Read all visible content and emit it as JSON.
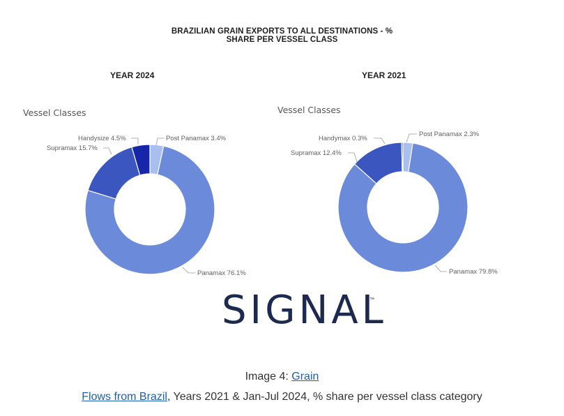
{
  "title_line1": "BRAZILIAN GRAIN EXPORTS TO ALL DESTINATIONS - %",
  "title_line2": "SHARE PER VESSEL CLASS",
  "chart_data": [
    {
      "type": "pie",
      "title": "YEAR 2024",
      "legend_title": "Vessel Classes",
      "categories": [
        "Post Panamax",
        "Panamax",
        "Supramax",
        "Handysize"
      ],
      "values": [
        3.4,
        76.1,
        15.7,
        4.5
      ],
      "labels": [
        "Post Panamax 3.4%",
        "Panamax 76.1%",
        "Supramax 15.7%",
        "Handysize 4.5%"
      ],
      "colors": [
        "#a9bff0",
        "#6b8ad9",
        "#3c56c0",
        "#1626a8"
      ],
      "donut": true
    },
    {
      "type": "pie",
      "title": "YEAR 2021",
      "legend_title": "Vessel Classes",
      "categories": [
        "Post Panamax",
        "Panamax",
        "Supramax",
        "Handymax"
      ],
      "values": [
        2.3,
        79.8,
        12.4,
        0.3
      ],
      "labels": [
        "Post Panamax 2.3%",
        "Panamax 79.8%",
        "Supramax 12.4%",
        "Handymax 0.3%"
      ],
      "colors": [
        "#a9bff0",
        "#6b8ad9",
        "#3c56c0",
        "#1626a8"
      ],
      "donut": true
    }
  ],
  "logo_text": "SIGNAL",
  "logo_tm": "™",
  "caption": {
    "line1_prefix": "Image 4: ",
    "line1_link": "Grain",
    "line2_link": "Flows from Brazil",
    "line2_suffix": ", Years 2021 & Jan-Jul 2024, % share per vessel class category"
  }
}
